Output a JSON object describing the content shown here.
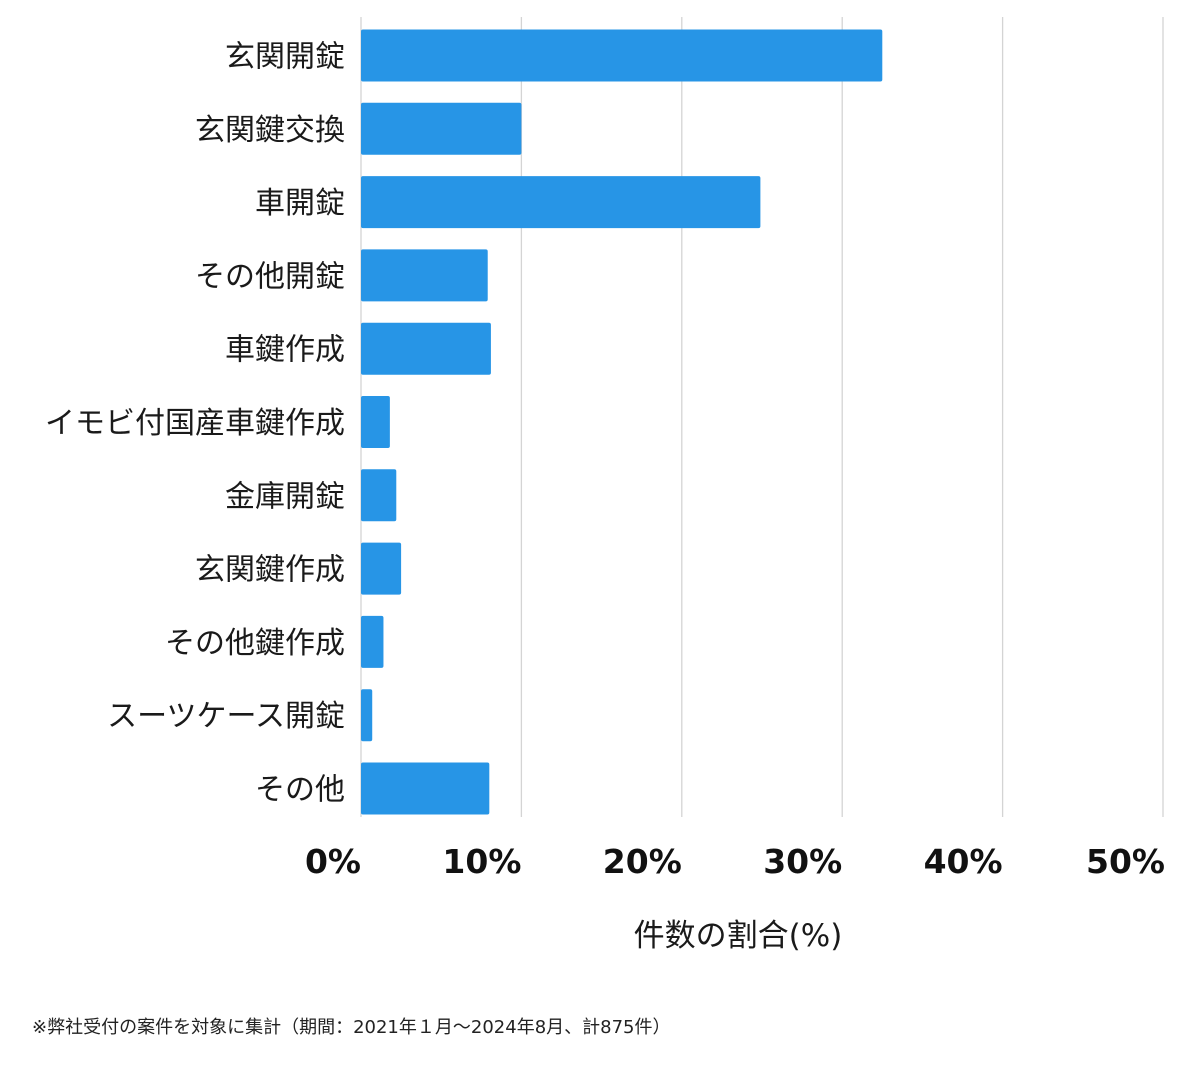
{
  "chart_data": {
    "type": "bar",
    "orientation": "horizontal",
    "categories": [
      "玄関開錠",
      "玄関鍵交換",
      "車開錠",
      "その他開錠",
      "車鍵作成",
      "イモビ付国産車鍵作成",
      "金庫開錠",
      "玄関鍵作成",
      "その他鍵作成",
      "スーツケース開錠",
      "その他"
    ],
    "values": [
      32.5,
      10.0,
      24.9,
      7.9,
      8.1,
      1.8,
      2.2,
      2.5,
      1.4,
      0.7,
      8.0
    ],
    "xlim": [
      0,
      50
    ],
    "xticks": [
      "0%",
      "10%",
      "20%",
      "30%",
      "40%",
      "50%"
    ],
    "xlabel": "件数の割合(%)",
    "ylabel": "",
    "grid": true,
    "bar_color": "#2795e6"
  },
  "footnote": "※弊社受付の案件を対象に集計（期間：2021年１月〜2024年8月、計875件）"
}
